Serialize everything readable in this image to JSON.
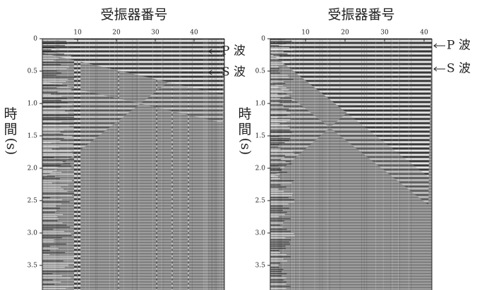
{
  "panels": [
    {
      "title": "受振器番号",
      "x_ticks": [
        "10",
        "20",
        "30",
        "40"
      ],
      "y_ticks": [
        "0",
        "0.5",
        "1.0",
        "1.5",
        "2.0",
        "2.5",
        "3.0",
        "3.5"
      ],
      "y_label": [
        "時",
        "間",
        "(s)"
      ],
      "annotations": [
        "P 波",
        "S 波"
      ]
    },
    {
      "title": "受振器番号",
      "x_ticks": [
        "10",
        "20",
        "30",
        "40"
      ],
      "y_ticks": [
        "0",
        "0.5",
        "1.0",
        "1.5",
        "2.0",
        "2.5",
        "3.0",
        "3.5"
      ],
      "y_label": [
        "時",
        "間",
        "(s)"
      ],
      "annotations": [
        "P 波",
        "S 波"
      ]
    }
  ]
}
